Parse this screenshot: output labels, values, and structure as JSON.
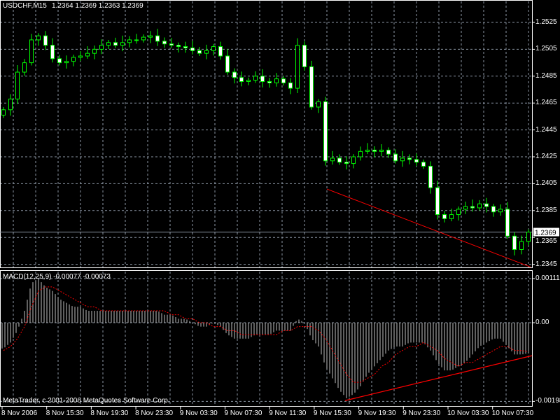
{
  "header": {
    "symbol": "USDCHF,M15",
    "ohlc": "1.2364 1.2369 1.2363 1.2369"
  },
  "macd_header": "MACD(12,25,9) -0.00077 -0.00073",
  "copyright": "MetaTrader, c 2001-2006 MetaQuotes Software Corp.",
  "colors": {
    "background": "#000000",
    "grid": "#8c96a5",
    "candle": "#00ff00",
    "histogram": "#c0c0c0",
    "signal": "#ff0000",
    "trendline": "#ff0000",
    "axis": "#ffffff"
  },
  "chart_data": [
    {
      "type": "candlestick",
      "symbol": "USDCHF",
      "timeframe": "M15",
      "current_price": "1.2369",
      "yticks": [
        "1.2525",
        "1.2505",
        "1.2485",
        "1.2465",
        "1.2445",
        "1.2425",
        "1.2405",
        "1.2385",
        "1.2365",
        "1.2345"
      ],
      "ylim": [
        1.2342,
        1.2542
      ],
      "xticks": [
        "8 Nov 2006",
        "8 Nov 15:30",
        "8 Nov 19:30",
        "8 Nov 23:30",
        "9 Nov 03:30",
        "9 Nov 07:30",
        "9 Nov 11:30",
        "9 Nov 15:30",
        "9 Nov 19:30",
        "9 Nov 23:30",
        "10 Nov 03:30",
        "10 Nov 07:30"
      ],
      "grid": true,
      "closes": [
        1.246,
        1.2468,
        1.2488,
        1.2495,
        1.2512,
        1.2515,
        1.2508,
        1.2498,
        1.2495,
        1.2496,
        1.2499,
        1.25,
        1.2502,
        1.2505,
        1.2508,
        1.251,
        1.2508,
        1.251,
        1.2512,
        1.2512,
        1.2514,
        1.2515,
        1.2511,
        1.2509,
        1.2508,
        1.2507,
        1.2506,
        1.2504,
        1.2502,
        1.2504,
        1.2507,
        1.25,
        1.2488,
        1.2484,
        1.2481,
        1.2482,
        1.2485,
        1.2481,
        1.248,
        1.2483,
        1.248,
        1.2476,
        1.2508,
        1.2492,
        1.2462,
        1.2466,
        1.2422,
        1.2424,
        1.2421,
        1.242,
        1.2425,
        1.2429,
        1.243,
        1.2429,
        1.243,
        1.2427,
        1.2422,
        1.2424,
        1.2423,
        1.2421,
        1.2418,
        1.2402,
        1.2382,
        1.2379,
        1.2382,
        1.2386,
        1.2388,
        1.2387,
        1.239,
        1.2388,
        1.2384,
        1.2386,
        1.2366,
        1.2356,
        1.2362,
        1.2369
      ],
      "trendline": {
        "from": [
          46.2,
          1.2401
        ],
        "to": [
          75.3,
          1.2343
        ]
      }
    },
    {
      "type": "macd",
      "params": "12,25,9",
      "yticks": [
        "0.00111",
        "0.00",
        "-0.00198"
      ],
      "ylim": [
        -0.00205,
        0.0013
      ],
      "histogram": [
        -0.00065,
        -0.0005,
        -0.0002,
        0.0003,
        0.001,
        0.0011,
        0.0009,
        0.0008,
        0.0006,
        0.0005,
        0.0004,
        0.0004,
        0.0003,
        0.0003,
        0.0003,
        0.0003,
        0.0003,
        0.0003,
        0.0003,
        0.0003,
        0.0003,
        0.0003,
        0.0003,
        0.0002,
        0.0002,
        0.0001,
        0.0001,
        0.0,
        -0.0001,
        -0.0001,
        0.0,
        -0.0001,
        -0.0003,
        -0.0004,
        -0.0004,
        -0.0004,
        -0.0003,
        -0.0003,
        -0.0003,
        -0.0002,
        -0.0002,
        -0.0002,
        0.0001,
        0.0,
        -0.0004,
        -0.0006,
        -0.0011,
        -0.0014,
        -0.0017,
        -0.0019,
        -0.0018,
        -0.0016,
        -0.0013,
        -0.0011,
        -0.0009,
        -0.0007,
        -0.0006,
        -0.0006,
        -0.0005,
        -0.0005,
        -0.0005,
        -0.0007,
        -0.001,
        -0.0012,
        -0.0012,
        -0.0011,
        -0.001,
        -0.0008,
        -0.0006,
        -0.0005,
        -0.0004,
        -0.0004,
        -0.0006,
        -0.0008,
        -0.0008,
        -0.00077
      ],
      "signal": [
        -0.0007,
        -0.0006,
        -0.0004,
        -0.0001,
        0.0004,
        0.0008,
        0.0009,
        0.0009,
        0.0008,
        0.0007,
        0.0006,
        0.0005,
        0.0004,
        0.0004,
        0.0003,
        0.0003,
        0.0003,
        0.0003,
        0.0003,
        0.0003,
        0.0003,
        0.0003,
        0.0003,
        0.0003,
        0.0002,
        0.0002,
        0.0001,
        0.0001,
        0.0,
        0.0,
        -0.0001,
        -0.0001,
        -0.0002,
        -0.0002,
        -0.0003,
        -0.0003,
        -0.0003,
        -0.0003,
        -0.0003,
        -0.0003,
        -0.0002,
        -0.0002,
        -0.0001,
        -0.0001,
        -0.0001,
        -0.0002,
        -0.0004,
        -0.0007,
        -0.001,
        -0.0013,
        -0.0015,
        -0.0015,
        -0.0014,
        -0.0013,
        -0.0011,
        -0.001,
        -0.0008,
        -0.0007,
        -0.0006,
        -0.0006,
        -0.0005,
        -0.0006,
        -0.0007,
        -0.0009,
        -0.001,
        -0.0011,
        -0.001,
        -0.001,
        -0.0009,
        -0.0008,
        -0.0007,
        -0.0006,
        -0.0006,
        -0.0007,
        -0.0007,
        -0.00073
      ],
      "trendline": {
        "from": [
          48.8,
          -0.00196
        ],
        "to": [
          75.5,
          -0.00083
        ]
      }
    }
  ]
}
